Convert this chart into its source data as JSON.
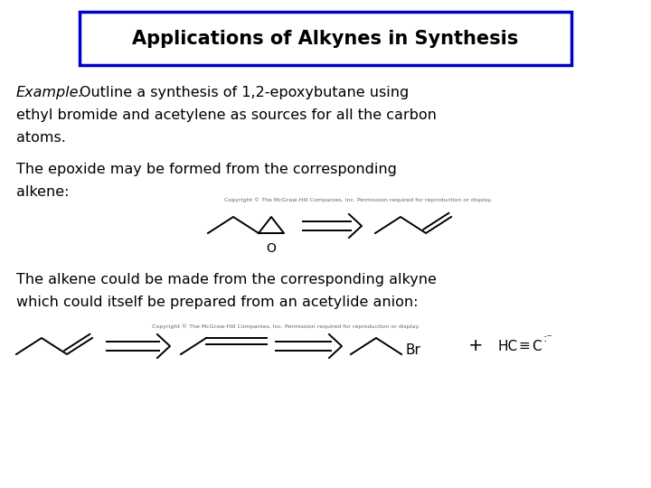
{
  "title": "Applications of Alkynes in Synthesis",
  "bg_color": "#ffffff",
  "title_box_color": "#0000cc",
  "title_font_size": 15,
  "text_color": "#000000",
  "fs_body": 11.5,
  "copyright1": "Copyright © The McGraw-Hill Companies, Inc. Permission required for reproduction or display.",
  "copyright2": "Copyright © The McGraw-Hill Companies, Inc. Permission required for reproduction or display."
}
